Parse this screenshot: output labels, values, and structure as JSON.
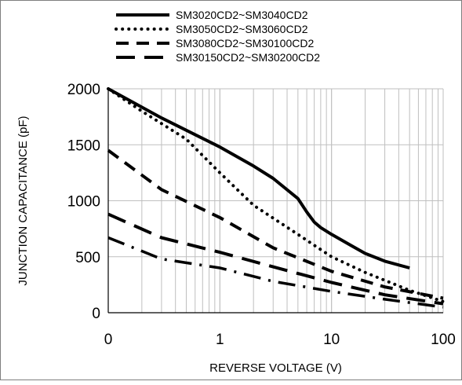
{
  "chart_data": {
    "type": "line",
    "title": "",
    "xlabel": "REVERSE VOLTAGE (V)",
    "ylabel": "JUNCTION CAPACITANCE (pF)",
    "x_scale": "log",
    "x_tick_labels": [
      "0",
      "1",
      "10",
      "100"
    ],
    "y_ticks": [
      0,
      500,
      1000,
      1500,
      2000
    ],
    "ylim": [
      0,
      2000
    ],
    "grid": true,
    "legend_position": "top",
    "series": [
      {
        "name": "SM3020CD2~SM3040CD2",
        "style": "solid",
        "x": [
          0.1,
          0.3,
          1,
          2,
          3,
          5,
          6,
          7,
          8,
          10,
          15,
          20,
          30,
          50
        ],
        "y": [
          2000,
          1740,
          1480,
          1310,
          1200,
          1020,
          900,
          810,
          760,
          700,
          600,
          530,
          460,
          400
        ]
      },
      {
        "name": "SM3050CD2~SM3060CD2",
        "style": "dotted",
        "x": [
          0.1,
          0.2,
          0.5,
          1,
          2,
          5,
          10,
          20,
          50,
          100
        ],
        "y": [
          2000,
          1800,
          1550,
          1250,
          960,
          700,
          500,
          360,
          200,
          100
        ]
      },
      {
        "name": "SM3080CD2~SM30100CD2",
        "style": "dashed",
        "x": [
          0.1,
          0.3,
          1,
          3,
          10,
          30,
          100
        ],
        "y": [
          1450,
          1100,
          850,
          580,
          370,
          230,
          130
        ]
      },
      {
        "name": "SM30150CD2~SM30200CD2",
        "style": "long-dash",
        "x": [
          0.1,
          0.3,
          1,
          3,
          10,
          30,
          100
        ],
        "y": [
          880,
          670,
          540,
          410,
          270,
          160,
          80
        ]
      },
      {
        "name": "",
        "style": "dash-dot",
        "x": [
          0.1,
          0.3,
          1,
          3,
          10,
          30,
          100
        ],
        "y": [
          670,
          480,
          400,
          280,
          190,
          120,
          50
        ]
      }
    ],
    "colors": {
      "lines": "#000000",
      "grid": "#bfbfbf",
      "frame": "#7f7f7f"
    }
  }
}
